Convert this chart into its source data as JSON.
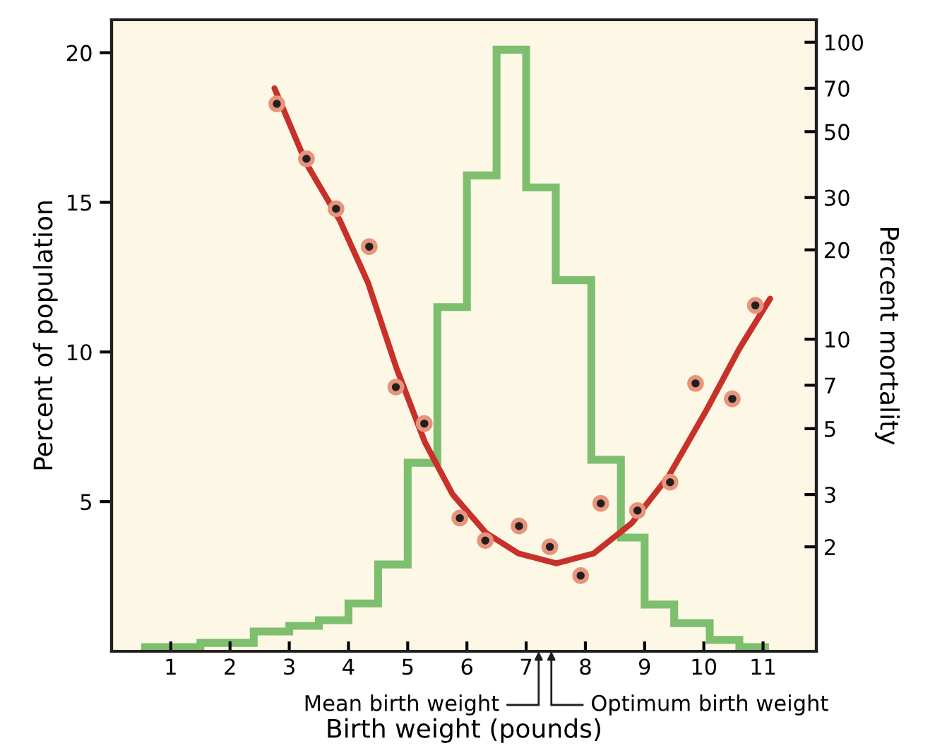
{
  "chart_data": {
    "type": "histogram",
    "xlabel": "Birth weight (pounds)",
    "ylabel": "Percent of population",
    "y2label": "Percent mortality",
    "bins": [
      0.5,
      1.5,
      2.4,
      3.0,
      3.5,
      4.0,
      4.5,
      5.0,
      5.5,
      6.0,
      6.5,
      7.0,
      7.5,
      8.1,
      8.6,
      9.0,
      9.5,
      10.1,
      10.6,
      11.1
    ],
    "values": [
      0.14,
      0.28,
      0.66,
      0.85,
      1.04,
      1.6,
      2.9,
      6.3,
      11.5,
      15.9,
      20.1,
      15.5,
      12.4,
      6.4,
      3.8,
      1.56,
      0.94,
      0.38,
      0.14
    ],
    "color": "#7dbf6e",
    "series": [
      {
        "type": "scatter",
        "axis": "y2",
        "marker": "circle",
        "color": "#231f20",
        "x": [
          2.79,
          3.29,
          3.79,
          4.35,
          4.8,
          5.28,
          5.88,
          6.31,
          6.88,
          7.4,
          7.92,
          8.26,
          8.88,
          9.43,
          9.86,
          10.48,
          10.87
        ],
        "values": [
          62,
          40.5,
          27.5,
          20.5,
          6.9,
          5.2,
          2.5,
          2.1,
          2.35,
          2.0,
          1.6,
          2.8,
          2.65,
          3.3,
          7.1,
          6.3,
          13
        ]
      },
      {
        "type": "line",
        "axis": "y2",
        "color": "#c8302a",
        "line_style": "solid",
        "x": [
          2.75,
          3.29,
          3.86,
          4.33,
          4.81,
          5.29,
          5.76,
          6.32,
          6.87,
          7.51,
          8.14,
          8.78,
          9.41,
          10.05,
          10.6,
          11.12
        ],
        "values": [
          70,
          39,
          25,
          15.5,
          8.0,
          4.5,
          3.0,
          2.23,
          1.9,
          1.76,
          1.9,
          2.4,
          3.47,
          5.8,
          9.3,
          13.7
        ]
      }
    ],
    "xlim": [
      0,
      11.9
    ],
    "xticks": [
      1,
      2,
      3,
      4,
      5,
      6,
      7,
      8,
      9,
      10,
      11
    ],
    "ylim": [
      0,
      21.1
    ],
    "yticks": [
      5,
      10,
      15,
      20
    ],
    "y2lim": [
      0.89,
      119
    ],
    "y2ticks": [
      2,
      3,
      5,
      7,
      10,
      20,
      30,
      50,
      70,
      100
    ],
    "log": "y2",
    "annotations": [
      "Mean birth weight",
      "Optimum birth weight"
    ],
    "grid": false,
    "legend": false
  }
}
